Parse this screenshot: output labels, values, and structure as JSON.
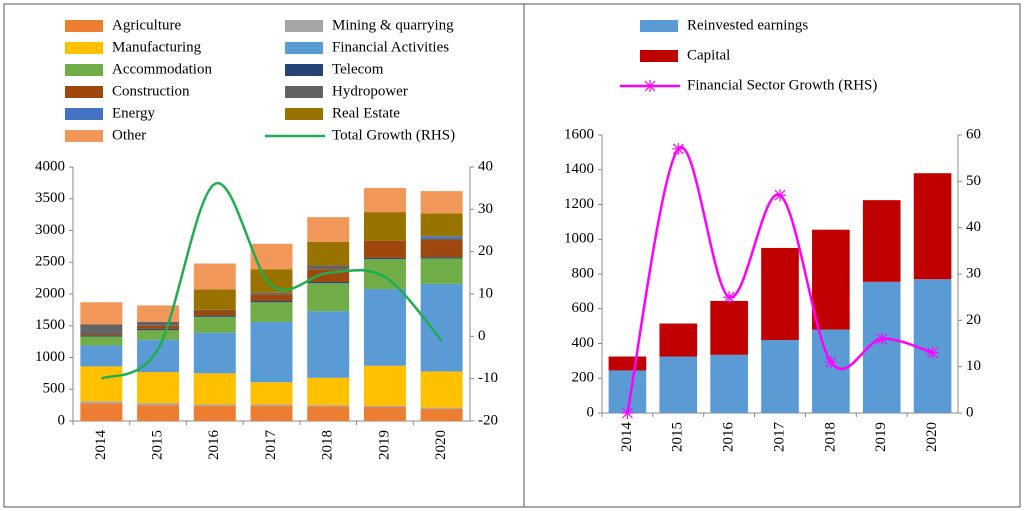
{
  "chart_data": [
    {
      "type": "bar",
      "stacked": true,
      "categories": [
        "2014",
        "2015",
        "2016",
        "2017",
        "2018",
        "2019",
        "2020"
      ],
      "ylim": [
        0,
        4000
      ],
      "yticks": [
        0,
        500,
        1000,
        1500,
        2000,
        2500,
        3000,
        3500,
        4000
      ],
      "y2lim": [
        -20,
        40
      ],
      "y2ticks": [
        -20,
        -10,
        0,
        10,
        20,
        30,
        40
      ],
      "series": [
        {
          "name": "Agriculture",
          "color": "#ed7d31",
          "values": [
            280,
            250,
            240,
            240,
            230,
            220,
            190
          ]
        },
        {
          "name": "Mining & quarrying",
          "color": "#a5a5a5",
          "values": [
            30,
            30,
            20,
            20,
            20,
            20,
            20
          ]
        },
        {
          "name": "Manufacturing",
          "color": "#ffc000",
          "values": [
            550,
            490,
            490,
            350,
            430,
            630,
            570
          ]
        },
        {
          "name": "Financial Activities",
          "color": "#5b9bd5",
          "values": [
            330,
            510,
            640,
            950,
            1050,
            1210,
            1380
          ]
        },
        {
          "name": "Accommodation",
          "color": "#70ad47",
          "values": [
            140,
            150,
            250,
            310,
            440,
            470,
            400
          ]
        },
        {
          "name": "Telecom",
          "color": "#264478",
          "values": [
            20,
            20,
            20,
            20,
            20,
            20,
            20
          ]
        },
        {
          "name": "Construction",
          "color": "#9e480e",
          "values": [
            20,
            50,
            80,
            100,
            200,
            270,
            270
          ]
        },
        {
          "name": "Hydropower",
          "color": "#636363",
          "values": [
            150,
            60,
            10,
            30,
            60,
            0,
            30
          ]
        },
        {
          "name": "Energy",
          "color": "#4472c4",
          "values": [
            0,
            0,
            0,
            0,
            0,
            0,
            30
          ]
        },
        {
          "name": "Real Estate",
          "color": "#997300",
          "values": [
            0,
            0,
            320,
            370,
            370,
            450,
            360
          ]
        },
        {
          "name": "Other",
          "color": "#f1975a",
          "values": [
            350,
            260,
            410,
            400,
            390,
            380,
            350
          ]
        },
        {
          "name": "Total Growth (RHS)",
          "color": "#1fae4f",
          "type": "line",
          "axis": "y2",
          "values": [
            -10,
            -3,
            36,
            12,
            15,
            14,
            -1
          ]
        }
      ]
    },
    {
      "type": "bar",
      "stacked": true,
      "categories": [
        "2014",
        "2015",
        "2016",
        "2017",
        "2018",
        "2019",
        "2020"
      ],
      "ylim": [
        0,
        1600
      ],
      "yticks": [
        0,
        200,
        400,
        600,
        800,
        1000,
        1200,
        1400,
        1600
      ],
      "y2lim": [
        0,
        60
      ],
      "y2ticks": [
        0,
        10,
        20,
        30,
        40,
        50,
        60
      ],
      "series": [
        {
          "name": "Reinvested earnings",
          "color": "#5b9bd5",
          "values": [
            245,
            325,
            335,
            420,
            480,
            755,
            770
          ]
        },
        {
          "name": "Capital",
          "color": "#c00000",
          "values": [
            80,
            190,
            310,
            530,
            575,
            470,
            610
          ]
        },
        {
          "name": "Financial Sector Growth (RHS)",
          "color": "#ff00ff",
          "type": "line",
          "axis": "y2",
          "marker": "x",
          "values": [
            0,
            57,
            25,
            47,
            11,
            16,
            13
          ]
        }
      ]
    }
  ]
}
